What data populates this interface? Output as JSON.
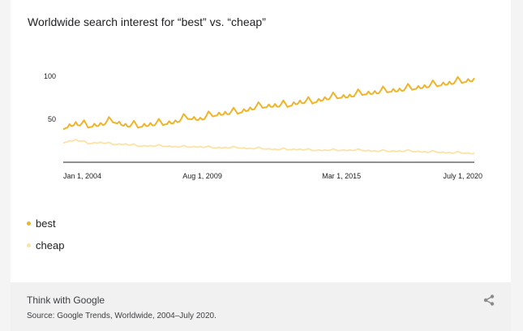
{
  "chart_data": {
    "type": "line",
    "title": "Worldwide search interest for “best” vs. “cheap”",
    "x_tick_labels": [
      "Jan 1, 2004",
      "Aug 1, 2009",
      "Mar 1, 2015",
      "July 1, 2020"
    ],
    "x_range": [
      "2004-01",
      "2020-07"
    ],
    "y_tick_labels": [
      "100",
      "50"
    ],
    "y_ticks": [
      100,
      50
    ],
    "ylim": [
      0,
      100
    ],
    "grid": false,
    "legend_placement": "bottom-left",
    "x": [
      "2004-01",
      "2004-07",
      "2005-01",
      "2005-07",
      "2006-01",
      "2006-07",
      "2007-01",
      "2007-07",
      "2008-01",
      "2008-07",
      "2009-01",
      "2009-07",
      "2010-01",
      "2010-07",
      "2011-01",
      "2011-07",
      "2012-01",
      "2012-07",
      "2013-01",
      "2013-07",
      "2014-01",
      "2014-07",
      "2015-01",
      "2015-07",
      "2016-01",
      "2016-07",
      "2017-01",
      "2017-07",
      "2018-01",
      "2018-07",
      "2019-01",
      "2019-07",
      "2020-01",
      "2020-07"
    ],
    "series": [
      {
        "name": "best",
        "color": "#f0b429",
        "values": [
          40,
          45,
          42,
          44,
          48,
          43,
          42,
          44,
          45,
          47,
          52,
          50,
          55,
          57,
          58,
          62,
          65,
          66,
          66,
          70,
          70,
          74,
          76,
          77,
          80,
          81,
          83,
          84,
          86,
          88,
          90,
          92,
          94,
          96
        ]
      },
      {
        "name": "cheap",
        "color": "#fbe3a6",
        "values": [
          23,
          26,
          22,
          23,
          21,
          21,
          19,
          19,
          19,
          18,
          18,
          18,
          17,
          17,
          17,
          16,
          16,
          15,
          15,
          15,
          14,
          14,
          14,
          14,
          14,
          13,
          13,
          13,
          13,
          12,
          12,
          11,
          11,
          10
        ]
      }
    ]
  },
  "footer": {
    "brand": "Think with Google",
    "source": "Source: Google Trends, Worldwide, 2004–July 2020.",
    "share_icon": "share-icon"
  }
}
